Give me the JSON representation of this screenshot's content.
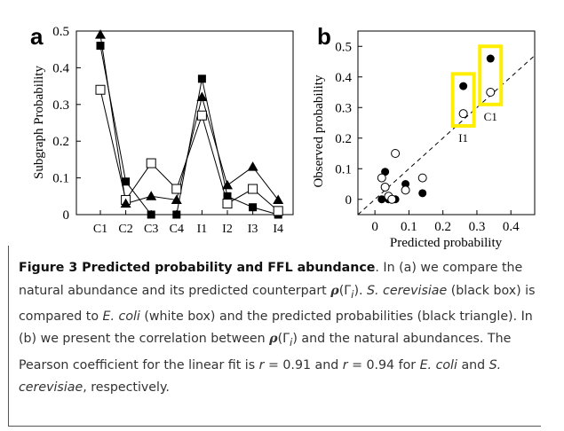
{
  "panel_a": {
    "letter": "a",
    "ylabel": "Subgraph Probability",
    "yticks": [
      "0",
      "0.1",
      "0.2",
      "0.3",
      "0.4",
      "0.5"
    ],
    "categories": [
      "C1",
      "C2",
      "C3",
      "C4",
      "I1",
      "I2",
      "I3",
      "I4"
    ]
  },
  "panel_b": {
    "letter": "b",
    "ylabel": "Observed probability",
    "xlabel": "Predicted probability",
    "xticks": [
      "0",
      "0.1",
      "0.2",
      "0.3",
      "0.4"
    ],
    "yticks": [
      "0",
      "0.1",
      "0.2",
      "0.3",
      "0.4",
      "0.5"
    ],
    "annotations": [
      "I1",
      "C1"
    ],
    "highlight_color": "#ffee00"
  },
  "chart_data": [
    {
      "type": "line",
      "categories": [
        "C1",
        "C2",
        "C3",
        "C4",
        "I1",
        "I2",
        "I3",
        "I4"
      ],
      "ylabel": "Subgraph Probability",
      "ylim": [
        0,
        0.5
      ],
      "series": [
        {
          "marker": "filled-square",
          "values": [
            0.46,
            0.09,
            0.0,
            0.0,
            0.37,
            0.05,
            0.02,
            0.0
          ]
        },
        {
          "marker": "open-square",
          "values": [
            0.34,
            0.04,
            0.14,
            0.07,
            0.27,
            0.03,
            0.07,
            0.01
          ]
        },
        {
          "marker": "filled-triangle",
          "values": [
            0.49,
            0.03,
            0.05,
            0.04,
            0.32,
            0.08,
            0.13,
            0.04
          ]
        }
      ]
    },
    {
      "type": "scatter",
      "xlabel": "Predicted probability",
      "ylabel": "Observed probability",
      "xlim": [
        -0.05,
        0.47
      ],
      "ylim": [
        -0.05,
        0.55
      ],
      "series": [
        {
          "marker": "filled-circle",
          "points": [
            [
              0.34,
              0.46
            ],
            [
              0.26,
              0.37
            ],
            [
              0.03,
              0.09
            ],
            [
              0.09,
              0.05
            ],
            [
              0.14,
              0.02
            ],
            [
              0.02,
              0.0
            ],
            [
              0.04,
              0.0
            ],
            [
              0.06,
              0.0
            ]
          ]
        },
        {
          "marker": "open-circle",
          "points": [
            [
              0.34,
              0.35
            ],
            [
              0.26,
              0.28
            ],
            [
              0.06,
              0.15
            ],
            [
              0.02,
              0.07
            ],
            [
              0.14,
              0.07
            ],
            [
              0.03,
              0.04
            ],
            [
              0.09,
              0.03
            ],
            [
              0.04,
              0.01
            ],
            [
              0.05,
              0.0
            ]
          ]
        }
      ],
      "reference_line": "y = x (dashed)",
      "highlight_boxes": [
        "I1",
        "C1"
      ]
    }
  ],
  "caption": {
    "title": "Figure 3 Predicted probability and FFL abundance",
    "p1": ". In (a) we compare the natural abundance and its predicted counterpart ",
    "rho": "ρ",
    "gamma": "(Γ",
    "sub_i": "i",
    "close": ")",
    "p2": ". ",
    "sp1": "S. cerevisiae",
    "p3": " (black box) is compared to ",
    "sp2": "E. coli",
    "p4": " (white box) and the predicted probabilities (black triangle). In (b) we present the correlation between ",
    "p5": " and the natural abundances. The Pearson coefficient for the linear fit is ",
    "r1": "r",
    "p6": " = 0.91 and ",
    "r2": "r",
    "p7": " = 0.94 for ",
    "sp3": "E. coli",
    "p8": " and ",
    "sp4": "S. cerevisiae",
    "p9": ", respectively."
  }
}
